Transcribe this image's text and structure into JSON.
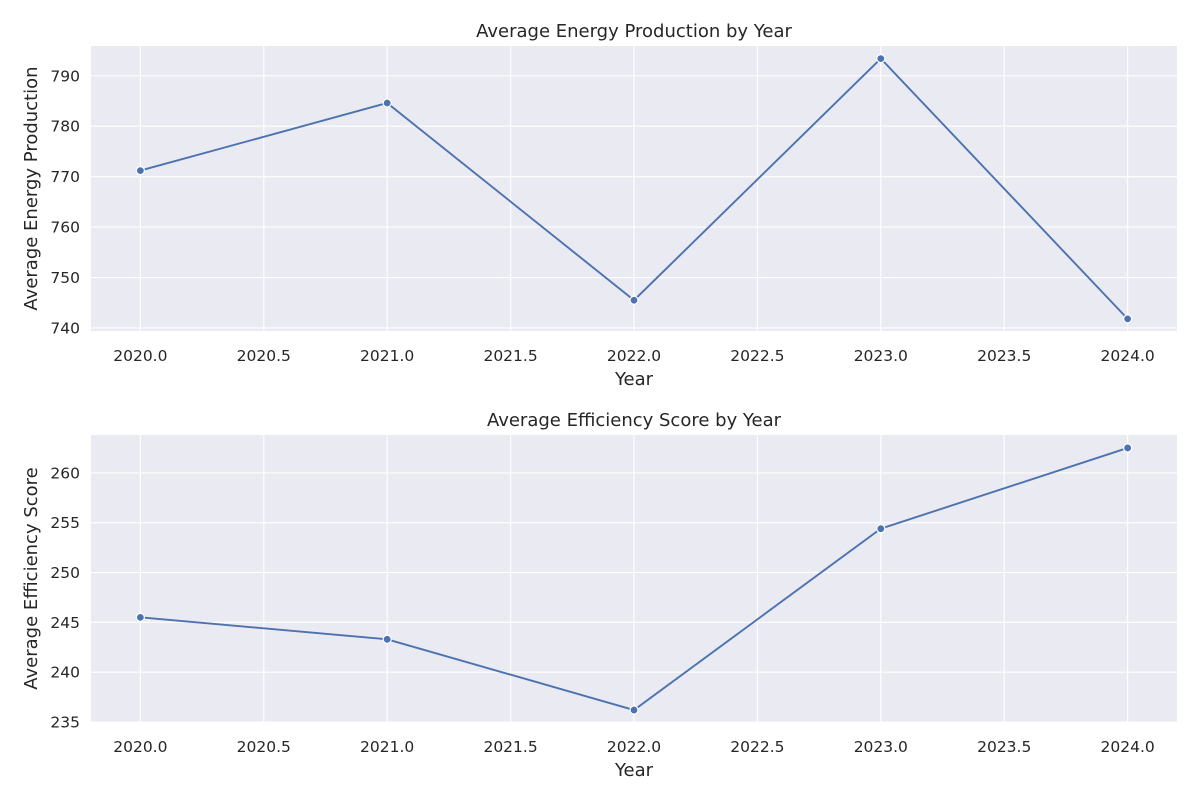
{
  "chart_data": [
    {
      "type": "line",
      "title": "Average Energy Production by Year",
      "xlabel": "Year",
      "ylabel": "Average Energy Production",
      "x": [
        2020,
        2021,
        2022,
        2023,
        2024
      ],
      "series": [
        {
          "values": [
            771.2,
            784.6,
            745.5,
            793.4,
            741.8
          ]
        }
      ],
      "xlim": [
        2019.8,
        2024.2
      ],
      "ylim": [
        739.4,
        795.9
      ],
      "xticks": [
        "2020.0",
        "2020.5",
        "2021.0",
        "2021.5",
        "2022.0",
        "2022.5",
        "2023.0",
        "2023.5",
        "2024.0"
      ],
      "yticks": [
        "740",
        "750",
        "760",
        "770",
        "780",
        "790"
      ],
      "grid": true,
      "marker": "circle",
      "color": "#4c72b0"
    },
    {
      "type": "line",
      "title": "Average Efficiency Score by Year",
      "xlabel": "Year",
      "ylabel": "Average Efficiency Score",
      "x": [
        2020,
        2021,
        2022,
        2023,
        2024
      ],
      "series": [
        {
          "values": [
            245.5,
            243.3,
            236.2,
            254.4,
            262.5
          ]
        }
      ],
      "xlim": [
        2019.8,
        2024.2
      ],
      "ylim": [
        235.0,
        263.8
      ],
      "xticks": [
        "2020.0",
        "2020.5",
        "2021.0",
        "2021.5",
        "2022.0",
        "2022.5",
        "2023.0",
        "2023.5",
        "2024.0"
      ],
      "yticks": [
        "235",
        "240",
        "245",
        "250",
        "255",
        "260"
      ],
      "grid": true,
      "marker": "circle",
      "color": "#4c72b0"
    }
  ]
}
